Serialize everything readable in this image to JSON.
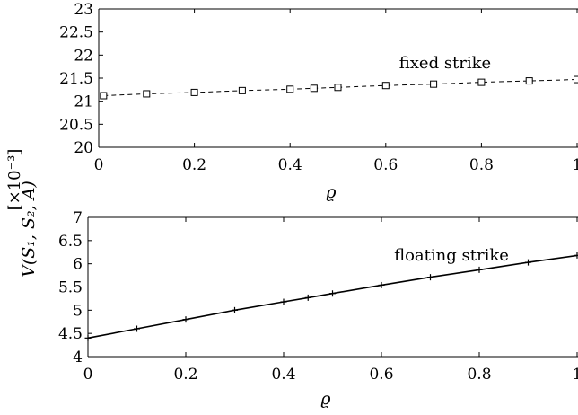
{
  "shared_ylabel": "V(S₁, S₂, A)",
  "unit_label": "[×10⁻³]",
  "chart_data": [
    {
      "type": "line",
      "xlabel": "ϱ",
      "ylabel": "V(S₁, S₂, A)",
      "annotation": "fixed strike",
      "xlim": [
        0,
        1
      ],
      "ylim": [
        20,
        23
      ],
      "xticks": [
        "0",
        "0.2",
        "0.4",
        "0.6",
        "0.8",
        "1"
      ],
      "yticks": [
        "20",
        "20.5",
        "21",
        "21.5",
        "22",
        "22.5",
        "23"
      ],
      "marker": "square",
      "line_style": "dashed",
      "color": "#000000",
      "x": [
        0.01,
        0.1,
        0.2,
        0.3,
        0.4,
        0.45,
        0.5,
        0.6,
        0.7,
        0.8,
        0.9,
        1.0
      ],
      "y": [
        21.12,
        21.16,
        21.19,
        21.23,
        21.26,
        21.28,
        21.3,
        21.34,
        21.37,
        21.41,
        21.44,
        21.47
      ]
    },
    {
      "type": "line",
      "xlabel": "ϱ",
      "ylabel": "V(S₁, S₂, A)",
      "annotation": "floating strike",
      "xlim": [
        0,
        1
      ],
      "ylim": [
        4,
        7
      ],
      "xticks": [
        "0",
        "0.2",
        "0.4",
        "0.6",
        "0.8",
        "1"
      ],
      "yticks": [
        "4",
        "4.5",
        "5",
        "5.5",
        "6",
        "6.5",
        "7"
      ],
      "marker": "plus",
      "line_style": "solid",
      "color": "#000000",
      "x": [
        0.0,
        0.1,
        0.2,
        0.3,
        0.4,
        0.45,
        0.5,
        0.6,
        0.7,
        0.8,
        0.9,
        1.0
      ],
      "y": [
        4.4,
        4.6,
        4.8,
        5.0,
        5.18,
        5.27,
        5.36,
        5.54,
        5.71,
        5.87,
        6.03,
        6.18
      ]
    }
  ]
}
